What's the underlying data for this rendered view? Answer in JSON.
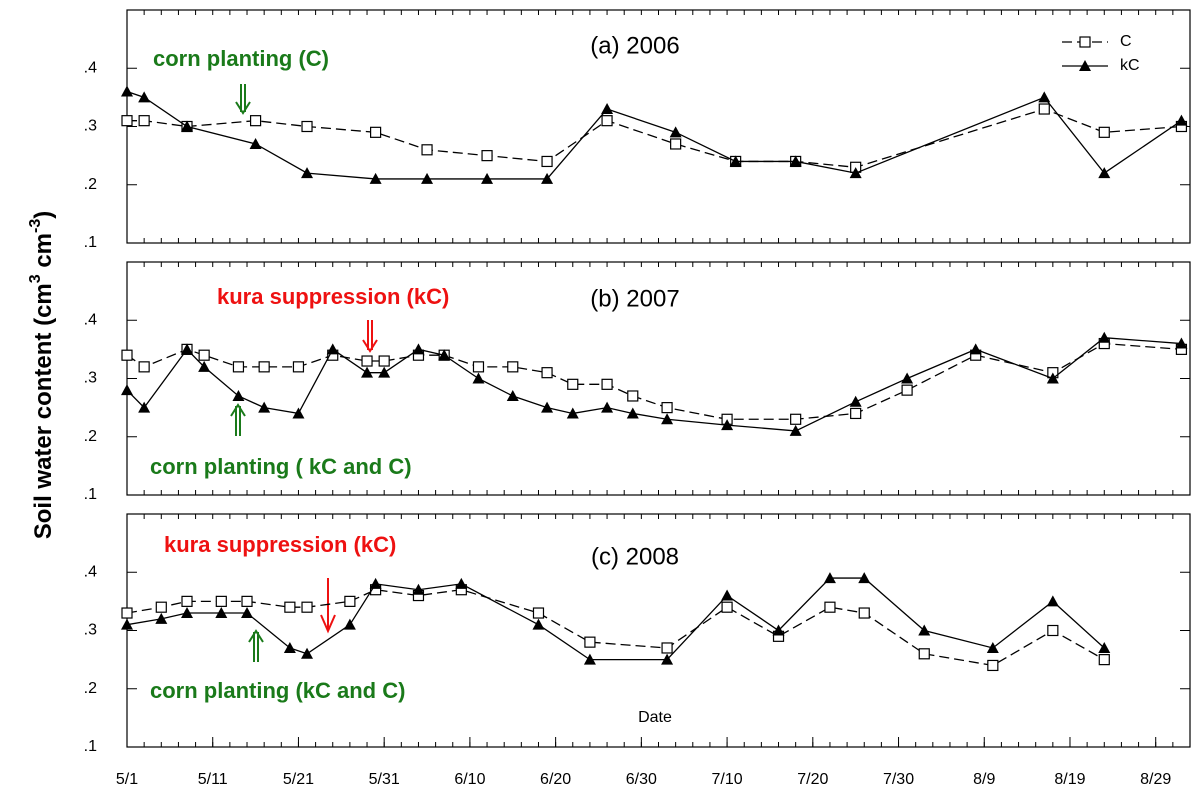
{
  "ylabel_parts": [
    "Soil water content (cm",
    "3",
    " cm",
    "-3",
    ")"
  ],
  "chart_data": [
    {
      "type": "line",
      "title": "(a) 2006",
      "legend": "upper right",
      "x": [
        "5/1",
        "5/3",
        "5/8",
        "5/16",
        "5/22",
        "5/30",
        "6/5",
        "6/12",
        "6/19",
        "6/26",
        "7/4",
        "7/11",
        "7/18",
        "7/25",
        "8/16",
        "8/23",
        "9/1"
      ],
      "series": [
        {
          "name": "C",
          "color": "#000000",
          "marker": "square-open",
          "dash": true,
          "values": [
            0.31,
            0.31,
            0.3,
            0.31,
            0.3,
            0.29,
            0.26,
            0.25,
            0.24,
            0.31,
            0.27,
            0.24,
            0.24,
            0.23,
            0.33,
            0.29,
            0.3
          ]
        },
        {
          "name": "kC",
          "color": "#000000",
          "marker": "triangle",
          "dash": false,
          "values": [
            0.36,
            0.35,
            0.3,
            0.27,
            0.22,
            0.21,
            0.21,
            0.21,
            0.21,
            0.33,
            0.29,
            0.24,
            0.24,
            0.22,
            0.35,
            0.22,
            0.31
          ]
        }
      ],
      "annotations": [
        {
          "text": "corn planting (C)",
          "color": "#1a7a1a"
        }
      ],
      "xlim": [
        "5/1",
        "9/2"
      ],
      "ylim": [
        0.1,
        0.5
      ],
      "yticks": [
        {
          "value": 0.1,
          "label": ".1"
        },
        {
          "value": 0.2,
          "label": ".2"
        },
        {
          "value": 0.3,
          "label": ".3"
        },
        {
          "value": 0.4,
          "label": ".4"
        }
      ]
    },
    {
      "type": "line",
      "title": "(b) 2007",
      "x": [
        "5/1",
        "5/3",
        "5/8",
        "5/10",
        "5/14",
        "5/17",
        "5/21",
        "5/25",
        "5/29",
        "5/31",
        "6/4",
        "6/7",
        "6/11",
        "6/15",
        "6/19",
        "6/22",
        "6/26",
        "6/29",
        "7/3",
        "7/10",
        "7/18",
        "7/25",
        "7/31",
        "8/8",
        "8/17",
        "8/23",
        "9/1"
      ],
      "series": [
        {
          "color": "#000000",
          "marker": "square-open",
          "dash": true,
          "values": [
            0.34,
            0.32,
            0.35,
            0.34,
            0.32,
            0.32,
            0.32,
            0.34,
            0.33,
            0.33,
            0.34,
            0.34,
            0.32,
            0.32,
            0.31,
            0.29,
            0.29,
            0.27,
            0.25,
            0.23,
            0.23,
            0.24,
            0.28,
            0.34,
            0.31,
            0.36,
            0.35
          ]
        },
        {
          "color": "#000000",
          "marker": "triangle",
          "dash": false,
          "values": [
            0.28,
            0.25,
            0.35,
            0.32,
            0.27,
            0.25,
            0.24,
            0.35,
            0.31,
            0.31,
            0.35,
            0.34,
            0.3,
            0.27,
            0.25,
            0.24,
            0.25,
            0.24,
            0.23,
            0.22,
            0.21,
            0.26,
            0.3,
            0.35,
            0.3,
            0.37,
            0.36
          ]
        }
      ],
      "annotations": [
        {
          "text": "kura suppression (kC)",
          "color": "#ee1111"
        },
        {
          "text": "corn planting ( kC and C)",
          "color": "#1a7a1a"
        }
      ],
      "xlim": [
        "5/1",
        "9/2"
      ],
      "ylim": [
        0.1,
        0.5
      ],
      "yticks": [
        {
          "value": 0.1,
          "label": ".1"
        },
        {
          "value": 0.2,
          "label": ".2"
        },
        {
          "value": 0.3,
          "label": ".3"
        },
        {
          "value": 0.4,
          "label": ".4"
        }
      ]
    },
    {
      "type": "line",
      "title": "(c) 2008",
      "xlabel": "Date",
      "x": [
        "5/1",
        "5/5",
        "5/8",
        "5/12",
        "5/15",
        "5/20",
        "5/22",
        "5/27",
        "5/30",
        "6/4",
        "6/9",
        "6/18",
        "6/24",
        "7/3",
        "7/10",
        "7/16",
        "7/22",
        "7/26",
        "8/2",
        "8/10",
        "8/17",
        "8/23"
      ],
      "series": [
        {
          "color": "#000000",
          "marker": "square-open",
          "dash": true,
          "values": [
            0.33,
            0.34,
            0.35,
            0.35,
            0.35,
            0.34,
            0.34,
            0.35,
            0.37,
            0.36,
            0.37,
            0.33,
            0.28,
            0.27,
            0.34,
            0.29,
            0.34,
            0.33,
            0.26,
            0.24,
            0.3,
            0.25
          ]
        },
        {
          "color": "#000000",
          "marker": "triangle",
          "dash": false,
          "values": [
            0.31,
            0.32,
            0.33,
            0.33,
            0.33,
            0.27,
            0.26,
            0.31,
            0.38,
            0.37,
            0.38,
            0.31,
            0.25,
            0.25,
            0.36,
            0.3,
            0.39,
            0.39,
            0.3,
            0.27,
            0.35,
            0.27
          ]
        }
      ],
      "annotations": [
        {
          "text": "kura suppression (kC)",
          "color": "#ee1111"
        },
        {
          "text": "corn planting (kC and C)",
          "color": "#1a7a1a"
        }
      ],
      "xlim": [
        "5/1",
        "9/2"
      ],
      "ylim": [
        0.1,
        0.5
      ],
      "xticks": [
        "5/1",
        "5/11",
        "5/21",
        "5/31",
        "6/10",
        "6/20",
        "6/30",
        "7/10",
        "7/20",
        "7/30",
        "8/9",
        "8/19",
        "8/29"
      ],
      "yticks": [
        {
          "value": 0.1,
          "label": ".1"
        },
        {
          "value": 0.2,
          "label": ".2"
        },
        {
          "value": 0.3,
          "label": ".3"
        },
        {
          "value": 0.4,
          "label": ".4"
        }
      ]
    }
  ]
}
